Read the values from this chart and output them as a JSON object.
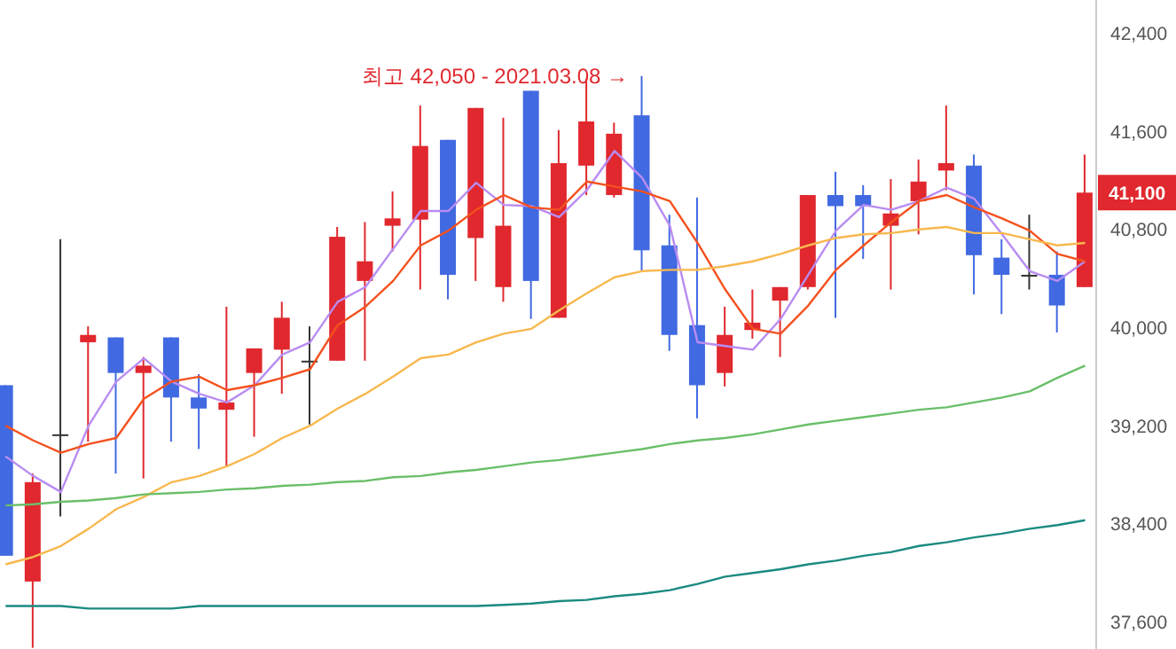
{
  "chart_data": {
    "type": "candlestick",
    "categories": [
      null,
      null,
      null,
      null,
      null,
      null,
      null,
      null,
      null,
      null,
      null,
      null,
      null,
      null,
      null,
      null,
      null,
      null,
      null,
      null,
      null,
      null,
      null,
      null,
      null,
      null,
      null,
      null,
      null,
      null,
      null,
      null,
      null,
      null,
      null,
      null,
      null,
      null,
      null,
      null
    ],
    "ohlc": [
      [
        39530,
        39530,
        38140,
        38140
      ],
      [
        37930,
        38810,
        37390,
        38740
      ],
      [
        39130,
        40720,
        38460,
        39130
      ],
      [
        39880,
        40010,
        39070,
        39940
      ],
      [
        39920,
        39920,
        38810,
        39630
      ],
      [
        39630,
        39760,
        38770,
        39690
      ],
      [
        39920,
        39920,
        39070,
        39430
      ],
      [
        39430,
        39620,
        39010,
        39340
      ],
      [
        39330,
        40170,
        38870,
        39390
      ],
      [
        39630,
        39830,
        39110,
        39830
      ],
      [
        39820,
        40210,
        39460,
        40080
      ],
      [
        39730,
        40010,
        39210,
        39730
      ],
      [
        39730,
        40820,
        39730,
        40740
      ],
      [
        40380,
        40860,
        39730,
        40540
      ],
      [
        40830,
        41110,
        40620,
        40890
      ],
      [
        40880,
        41810,
        40310,
        41480
      ],
      [
        41530,
        41530,
        40230,
        40430
      ],
      [
        40730,
        41790,
        40380,
        41790
      ],
      [
        40330,
        41710,
        40210,
        40830
      ],
      [
        41930,
        41930,
        40070,
        40380
      ],
      [
        40080,
        41610,
        40080,
        41340
      ],
      [
        41320,
        42030,
        41080,
        41680
      ],
      [
        41080,
        41670,
        41060,
        41580
      ],
      [
        41730,
        42050,
        40460,
        40630
      ],
      [
        40670,
        40920,
        39810,
        39940
      ],
      [
        40020,
        41060,
        39260,
        39530
      ],
      [
        39630,
        40170,
        39520,
        39940
      ],
      [
        39980,
        40310,
        39910,
        40040
      ],
      [
        40220,
        40330,
        39760,
        40330
      ],
      [
        40330,
        41080,
        40310,
        41080
      ],
      [
        41080,
        41270,
        40080,
        40990
      ],
      [
        41080,
        41160,
        40560,
        40990
      ],
      [
        40830,
        41210,
        40310,
        40930
      ],
      [
        41030,
        41370,
        40760,
        41190
      ],
      [
        41280,
        41810,
        41120,
        41340
      ],
      [
        41320,
        41410,
        40270,
        40590
      ],
      [
        40570,
        40720,
        40110,
        40430
      ],
      [
        40430,
        40920,
        40310,
        40430
      ],
      [
        40430,
        40620,
        39960,
        40180
      ],
      [
        40330,
        41410,
        40330,
        41100
      ]
    ],
    "colors": [
      "#4169e1",
      "#e0282e",
      "#333333",
      "#e0282e",
      "#4169e1",
      "#e0282e",
      "#4169e1",
      "#4169e1",
      "#e0282e",
      "#e0282e",
      "#e0282e",
      "#333333",
      "#e0282e",
      "#e0282e",
      "#e0282e",
      "#e0282e",
      "#4169e1",
      "#e0282e",
      "#e0282e",
      "#4169e1",
      "#e0282e",
      "#e0282e",
      "#e0282e",
      "#4169e1",
      "#4169e1",
      "#4169e1",
      "#e0282e",
      "#e0282e",
      "#e0282e",
      "#e0282e",
      "#4169e1",
      "#4169e1",
      "#e0282e",
      "#e0282e",
      "#e0282e",
      "#4169e1",
      "#4169e1",
      "#333333",
      "#4169e1",
      "#e0282e"
    ],
    "series": [
      {
        "type": "line",
        "color": "#b98cf2",
        "values": [
          38950,
          38790,
          38660,
          39200,
          39560,
          39750,
          39560,
          39460,
          39390,
          39530,
          39780,
          39880,
          40210,
          40330,
          40640,
          40950,
          40950,
          41180,
          41000,
          40990,
          40900,
          41120,
          41440,
          41220,
          40830,
          39880,
          39850,
          39820,
          40070,
          40430,
          40790,
          41000,
          40960,
          41030,
          41140,
          41050,
          40760,
          40460,
          40380,
          40540
        ]
      },
      {
        "type": "line",
        "color": "#f4511e",
        "values": [
          39200,
          39080,
          38980,
          39050,
          39100,
          39420,
          39560,
          39600,
          39490,
          39530,
          39590,
          39660,
          40020,
          40170,
          40380,
          40670,
          40790,
          40960,
          41080,
          40980,
          40960,
          41190,
          41150,
          41110,
          41030,
          40690,
          40310,
          39990,
          39950,
          40180,
          40470,
          40670,
          40860,
          41030,
          41080,
          40980,
          40890,
          40790,
          40600,
          40540
        ]
      },
      {
        "type": "line",
        "color": "#f8b84e",
        "values": [
          38070,
          38130,
          38220,
          38360,
          38520,
          38620,
          38740,
          38790,
          38870,
          38970,
          39100,
          39200,
          39340,
          39460,
          39600,
          39750,
          39780,
          39880,
          39950,
          39990,
          40140,
          40280,
          40410,
          40460,
          40470,
          40470,
          40500,
          40540,
          40600,
          40670,
          40730,
          40760,
          40770,
          40800,
          40820,
          40770,
          40770,
          40720,
          40670,
          40690
        ]
      },
      {
        "type": "line",
        "color": "#6abf69",
        "values": [
          38550,
          38560,
          38580,
          38590,
          38610,
          38640,
          38650,
          38660,
          38680,
          38690,
          38710,
          38720,
          38740,
          38750,
          38780,
          38790,
          38820,
          38840,
          38870,
          38900,
          38920,
          38950,
          38980,
          39010,
          39050,
          39080,
          39100,
          39130,
          39170,
          39210,
          39240,
          39270,
          39300,
          39330,
          39350,
          39390,
          39430,
          39480,
          39590,
          39690
        ]
      },
      {
        "type": "line",
        "color": "#1a8a80",
        "values": [
          37730,
          37730,
          37730,
          37710,
          37710,
          37710,
          37710,
          37730,
          37730,
          37730,
          37730,
          37730,
          37730,
          37730,
          37730,
          37730,
          37730,
          37730,
          37740,
          37750,
          37770,
          37780,
          37810,
          37830,
          37860,
          37910,
          37970,
          38000,
          38030,
          38070,
          38100,
          38140,
          38170,
          38220,
          38250,
          38290,
          38320,
          38360,
          38390,
          38430
        ]
      }
    ],
    "ylim": [
      37380,
      42670
    ],
    "yticks": [
      {
        "value": 37600,
        "label": "37,600"
      },
      {
        "value": 38400,
        "label": "38,400"
      },
      {
        "value": 39200,
        "label": "39,200"
      },
      {
        "value": 40000,
        "label": "40,000"
      },
      {
        "value": 40800,
        "label": "40,800"
      },
      {
        "value": 41600,
        "label": "41,600"
      },
      {
        "value": 42400,
        "label": "42,400"
      }
    ],
    "annotations": [
      "최고 42,050 - 2021.03.08 →",
      "41,100"
    ],
    "marker": "none",
    "line_style": "solid",
    "grid": false
  }
}
